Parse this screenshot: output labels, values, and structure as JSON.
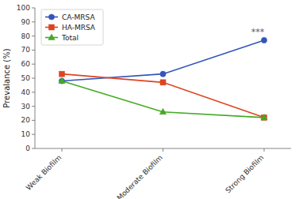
{
  "chart_data": {
    "type": "line",
    "categories": [
      "Weak Biofilm",
      "Moderate Biofilm",
      "Strong Biofilm"
    ],
    "series": [
      {
        "name": "CA-MRSA",
        "values": [
          48,
          53,
          77
        ],
        "color": "#3355BB",
        "marker": "circle",
        "line_style": "solid"
      },
      {
        "name": "HA-MRSA",
        "values": [
          53,
          47,
          22
        ],
        "color": "#DD4422",
        "marker": "square",
        "line_style": "solid"
      },
      {
        "name": "Total",
        "values": [
          48,
          26,
          22
        ],
        "color": "#44AA22",
        "marker": "triangle",
        "line_style": "solid"
      }
    ],
    "y_label": "Prevalance (%)",
    "ylim": [
      0,
      100
    ],
    "yticks": [
      0,
      10,
      20,
      30,
      40,
      50,
      60,
      70,
      80,
      90,
      100
    ],
    "annotations": [
      {
        "text": "***",
        "category": "Strong Biofilm",
        "y": 80
      }
    ],
    "legend": "upper left",
    "grid": false
  }
}
